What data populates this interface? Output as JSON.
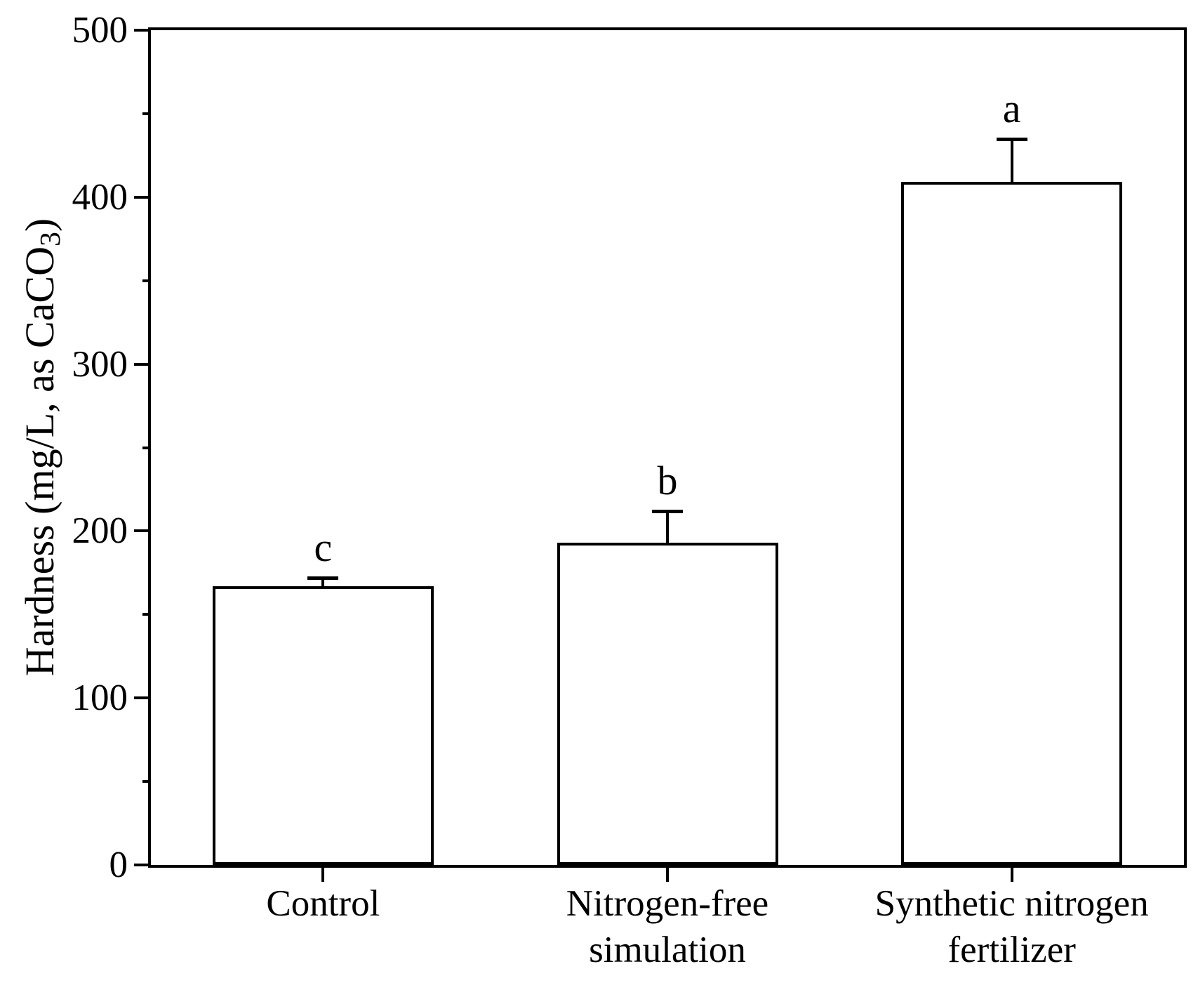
{
  "figure": {
    "background_color": "#ffffff",
    "ink_color": "#000000"
  },
  "chart_data": {
    "type": "bar",
    "title": "",
    "xlabel": "",
    "ylabel": {
      "prefix": "Hardness (mg/L, as CaCO",
      "subscript": "3",
      "suffix": ")"
    },
    "categories": [
      [
        "Control"
      ],
      [
        "Nitrogen-free",
        "simulation"
      ],
      [
        "Synthetic nitrogen",
        "fertilizer"
      ]
    ],
    "values": [
      167,
      193,
      409
    ],
    "errors_upper": [
      5,
      19,
      26
    ],
    "significance_letters": [
      "c",
      "b",
      "a"
    ],
    "ylim": [
      0,
      500
    ],
    "y_major_ticks": [
      0,
      100,
      200,
      300,
      400,
      500
    ],
    "y_minor_step": 50,
    "grid": false,
    "legend": false,
    "bar_fill": "#ffffff",
    "bar_edge": "#000000",
    "error_color": "#000000"
  }
}
